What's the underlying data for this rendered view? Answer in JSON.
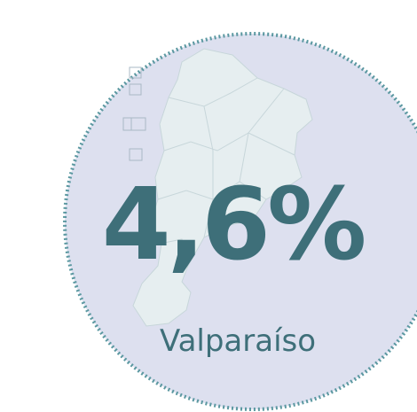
{
  "stat": {
    "value": "4,6%",
    "label": "Valparaíso"
  }
}
